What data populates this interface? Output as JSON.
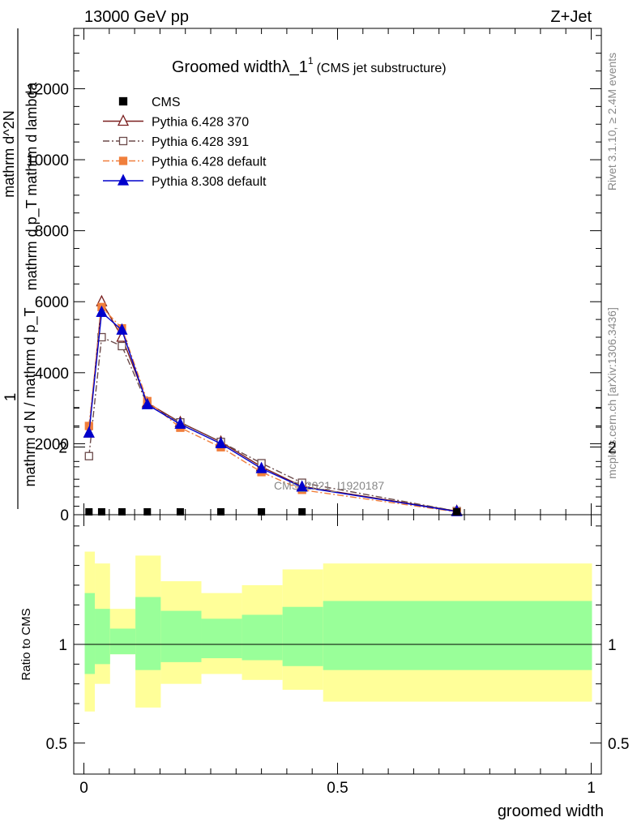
{
  "header": {
    "left": "13000 GeV pp",
    "right": "Z+Jet"
  },
  "side_labels": {
    "rivet": "Rivet 3.1.10, ≥ 2.4M events",
    "mcplots": "mcplots.cern.ch [arXiv:1306.3436]"
  },
  "main_plot": {
    "title": "Groomed width",
    "title_lambda": "λ_1",
    "title_sup": "1",
    "title_suffix": "(CMS jet substructure)",
    "ylabel_lines": [
      "1",
      "mathrm d N / mathrm d p_T",
      "mathrm d^2N",
      "mathrm d p_T mathrm d lambda"
    ],
    "watermark": "CMS_2021_I1920187"
  },
  "ratio_plot": {
    "ylabel": "Ratio to CMS"
  },
  "xlabel": "groomed width",
  "legend": [
    {
      "label": "CMS",
      "color": "#000000",
      "marker": "square-filled"
    },
    {
      "label": "Pythia 6.428 370",
      "color": "#7a1f1f",
      "marker": "triangle-open"
    },
    {
      "label": "Pythia 6.428 391",
      "color": "#6b4a4a",
      "marker": "square-open"
    },
    {
      "label": "Pythia 6.428 default",
      "color": "#f07f3c",
      "marker": "square-filled"
    },
    {
      "label": "Pythia 8.308 default",
      "color": "#0000cc",
      "marker": "triangle-filled"
    }
  ],
  "chart_data": {
    "type": "line",
    "xlim": [
      -0.02,
      1.02
    ],
    "ylim_main": [
      0,
      13700
    ],
    "ylim_ratio": [
      0.5,
      2.25
    ],
    "x_ticks": [
      "0",
      "0.5",
      "1"
    ],
    "y_ticks_main": [
      "0",
      "2000",
      "4000",
      "6000",
      "8000",
      "10000",
      "12000"
    ],
    "y_ticks_ratio": [
      "0.5",
      "1",
      "2"
    ],
    "bins": [
      0.0,
      0.02,
      0.05,
      0.1,
      0.15,
      0.23,
      0.31,
      0.39,
      0.47,
      1.0
    ],
    "x": [
      0.01,
      0.035,
      0.075,
      0.125,
      0.19,
      0.27,
      0.35,
      0.43,
      0.735
    ],
    "series": [
      {
        "name": "CMS",
        "values": [
          0,
          0,
          0,
          0,
          0,
          0,
          0,
          0,
          0
        ]
      },
      {
        "name": "Pythia 6.428 370",
        "values": [
          2300,
          6000,
          5000,
          3150,
          2600,
          2050,
          1350,
          800,
          100
        ]
      },
      {
        "name": "Pythia 6.428 391",
        "values": [
          1650,
          5000,
          4750,
          3100,
          2600,
          2050,
          1450,
          900,
          100
        ]
      },
      {
        "name": "Pythia 6.428 default",
        "values": [
          2500,
          5850,
          5250,
          3200,
          2450,
          1900,
          1200,
          700,
          80
        ]
      },
      {
        "name": "Pythia 8.308 default",
        "values": [
          2300,
          5700,
          5200,
          3100,
          2550,
          2000,
          1300,
          780,
          90
        ]
      }
    ],
    "ratio_bands": {
      "inner": [
        [
          0.85,
          1.26
        ],
        [
          0.9,
          1.18
        ],
        [
          0.95,
          1.08
        ],
        [
          0.87,
          1.24
        ],
        [
          0.91,
          1.17
        ],
        [
          0.93,
          1.13
        ],
        [
          0.92,
          1.15
        ],
        [
          0.89,
          1.19
        ],
        [
          0.87,
          1.22
        ]
      ],
      "outer": [
        [
          0.66,
          1.47
        ],
        [
          0.8,
          1.41
        ],
        [
          0.95,
          1.18
        ],
        [
          0.68,
          1.45
        ],
        [
          0.8,
          1.32
        ],
        [
          0.85,
          1.26
        ],
        [
          0.82,
          1.3
        ],
        [
          0.77,
          1.38
        ],
        [
          0.71,
          1.41
        ]
      ]
    }
  },
  "colors": {
    "band_inner": "#99ff99",
    "band_outer": "#ffff99"
  }
}
